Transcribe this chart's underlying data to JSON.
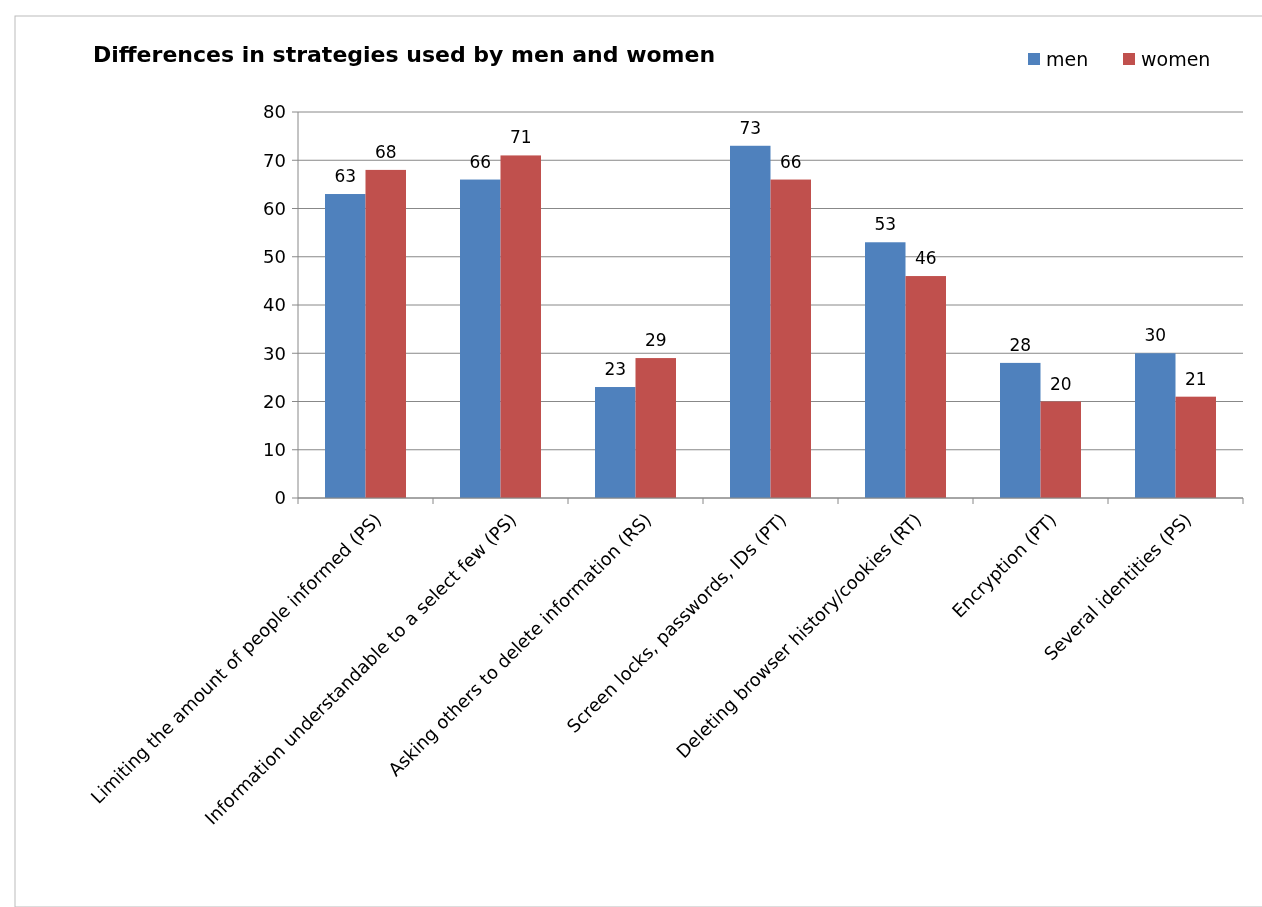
{
  "chart_data": {
    "type": "bar",
    "title": "Differences in strategies used by men and women",
    "categories": [
      "Limiting the amount of people informed (PS)",
      "Information understandable to a select few (PS)",
      "Asking others to delete information (RS)",
      "Screen locks, passwords, IDs (PT)",
      "Deleting browser history/cookies (RT)",
      "Encryption (PT)",
      "Several identities (PS)"
    ],
    "series": [
      {
        "name": "men",
        "color": "#4f81bd",
        "values": [
          63,
          66,
          23,
          73,
          53,
          28,
          30
        ]
      },
      {
        "name": "women",
        "color": "#c0504d",
        "values": [
          68,
          71,
          29,
          66,
          46,
          20,
          21
        ]
      }
    ],
    "ylim": [
      0,
      80
    ],
    "yticks": [
      0,
      10,
      20,
      30,
      40,
      50,
      60,
      70,
      80
    ],
    "grid": "y",
    "legend": "top right",
    "data_labels": true
  }
}
